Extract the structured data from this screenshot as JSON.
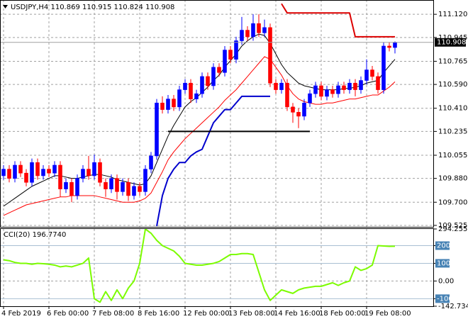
{
  "chart_data": [
    {
      "type": "candlestick",
      "title": "USDJPY,H4  110.869 110.915 110.824 110.908",
      "categories": [
        "4 Feb 2019",
        null,
        null,
        null,
        null,
        null,
        null,
        null,
        "6 Feb 00:00",
        null,
        null,
        null,
        null,
        null,
        null,
        null,
        "7 Feb 08:00",
        null,
        null,
        null,
        null,
        null,
        null,
        null,
        "8 Feb 16:00",
        null,
        null,
        null,
        null,
        null,
        null,
        null,
        "12 Feb 00:00",
        null,
        null,
        null,
        null,
        null,
        null,
        null,
        "13 Feb 08:00",
        null,
        null,
        null,
        null,
        null,
        null,
        null,
        "14 Feb 16:00",
        null,
        null,
        null,
        null,
        null,
        null,
        null,
        "18 Feb 00:00",
        null,
        null,
        null,
        null,
        null,
        null,
        null,
        "19 Feb 08:00",
        null,
        null,
        null,
        null,
        null
      ],
      "open": [
        109.9,
        109.95,
        109.88,
        109.98,
        109.92,
        109.85,
        110.0,
        109.9,
        109.95,
        109.92,
        109.98,
        109.8,
        109.85,
        109.75,
        109.88,
        109.95,
        109.9,
        110.0,
        109.85,
        109.8,
        109.88,
        109.78,
        109.85,
        109.75,
        109.82,
        109.78,
        109.95,
        110.05,
        110.45,
        110.4,
        110.48,
        110.42,
        110.55,
        110.6,
        110.48,
        110.52,
        110.65,
        110.58,
        110.72,
        110.68,
        110.85,
        110.78,
        110.92,
        111.0,
        110.95,
        111.05,
        110.98,
        111.02,
        110.6,
        110.55,
        110.6,
        110.42,
        110.38,
        110.35,
        110.45,
        110.52,
        110.58,
        110.5,
        110.55,
        110.52,
        110.58,
        110.55,
        110.6,
        110.55,
        110.62,
        110.7,
        110.65,
        110.55,
        110.88,
        110.869
      ],
      "high": [
        109.98,
        109.98,
        110.01,
        110.01,
        109.95,
        110.03,
        110.03,
        109.98,
        109.98,
        110.01,
        110.01,
        109.88,
        109.88,
        109.91,
        109.98,
        110.05,
        110.06,
        110.03,
        109.88,
        109.91,
        109.91,
        109.88,
        109.88,
        109.85,
        109.85,
        109.98,
        110.08,
        110.48,
        110.5,
        110.51,
        110.51,
        110.58,
        110.63,
        110.63,
        110.55,
        110.68,
        110.68,
        110.75,
        110.75,
        110.88,
        110.88,
        110.95,
        111.1,
        111.03,
        111.12,
        111.12,
        111.08,
        111.05,
        110.63,
        110.63,
        110.63,
        110.45,
        110.41,
        110.48,
        110.55,
        110.61,
        110.61,
        110.58,
        110.58,
        110.61,
        110.61,
        110.63,
        110.63,
        110.65,
        110.78,
        110.73,
        110.68,
        110.91,
        110.91,
        110.915
      ],
      "low": [
        109.87,
        109.85,
        109.85,
        109.89,
        109.82,
        109.82,
        109.87,
        109.87,
        109.89,
        109.89,
        109.74,
        109.77,
        109.7,
        109.72,
        109.85,
        109.87,
        109.87,
        109.82,
        109.74,
        109.77,
        109.72,
        109.75,
        109.71,
        109.72,
        109.75,
        109.75,
        109.92,
        110.02,
        110.37,
        110.37,
        110.39,
        110.39,
        110.52,
        110.45,
        110.45,
        110.49,
        110.55,
        110.55,
        110.65,
        110.65,
        110.75,
        110.75,
        110.89,
        110.92,
        110.92,
        110.95,
        110.95,
        110.57,
        110.52,
        110.52,
        110.39,
        110.3,
        110.26,
        110.32,
        110.42,
        110.49,
        110.47,
        110.47,
        110.49,
        110.49,
        110.52,
        110.52,
        110.5,
        110.52,
        110.59,
        110.62,
        110.52,
        110.52,
        110.84,
        110.824
      ],
      "close": [
        109.95,
        109.88,
        109.98,
        109.92,
        109.85,
        110.0,
        109.9,
        109.95,
        109.92,
        109.98,
        109.8,
        109.85,
        109.75,
        109.88,
        109.95,
        109.9,
        110.0,
        109.85,
        109.8,
        109.88,
        109.78,
        109.85,
        109.75,
        109.82,
        109.78,
        109.95,
        110.05,
        110.45,
        110.4,
        110.48,
        110.42,
        110.55,
        110.6,
        110.48,
        110.52,
        110.65,
        110.58,
        110.72,
        110.68,
        110.85,
        110.78,
        110.92,
        111.0,
        110.95,
        111.05,
        110.98,
        111.02,
        110.6,
        110.55,
        110.6,
        110.42,
        110.38,
        110.35,
        110.45,
        110.52,
        110.58,
        110.5,
        110.55,
        110.52,
        110.58,
        110.55,
        110.6,
        110.55,
        110.62,
        110.7,
        110.65,
        110.55,
        110.88,
        110.869,
        110.908
      ],
      "up_color": "#0000ff",
      "down_color": "#ff0000",
      "series": [
        {
          "color": "#000000",
          "values": [
            109.67,
            109.7,
            109.73,
            109.76,
            109.79,
            109.82,
            109.84,
            109.86,
            109.88,
            109.9,
            109.9,
            109.89,
            109.88,
            109.88,
            109.89,
            109.9,
            109.91,
            109.91,
            109.9,
            109.89,
            109.87,
            109.86,
            109.85,
            109.84,
            109.83,
            109.84,
            109.9,
            110.0,
            110.1,
            110.2,
            110.28,
            110.35,
            110.42,
            110.46,
            110.49,
            110.53,
            110.57,
            110.62,
            110.66,
            110.72,
            110.77,
            110.82,
            110.88,
            110.92,
            110.95,
            110.97,
            110.96,
            110.9,
            110.82,
            110.74,
            110.68,
            110.64,
            110.6,
            110.58,
            110.57,
            110.56,
            110.55,
            110.55,
            110.55,
            110.55,
            110.56,
            110.56,
            110.57,
            110.58,
            110.6,
            110.61,
            110.62,
            110.68,
            110.73,
            110.78
          ]
        },
        {
          "color": "#ff0000",
          "values": [
            109.6,
            109.62,
            109.64,
            109.66,
            109.68,
            109.69,
            109.7,
            109.71,
            109.72,
            109.73,
            109.74,
            109.74,
            109.75,
            109.75,
            109.75,
            109.75,
            109.75,
            109.74,
            109.73,
            109.72,
            109.71,
            109.7,
            109.7,
            109.7,
            109.71,
            109.73,
            109.77,
            109.85,
            109.93,
            110.02,
            110.08,
            110.13,
            110.18,
            110.22,
            110.26,
            110.3,
            110.34,
            110.38,
            110.42,
            110.47,
            110.51,
            110.55,
            110.6,
            110.65,
            110.7,
            110.75,
            110.8,
            110.78,
            110.72,
            110.66,
            110.58,
            110.52,
            110.48,
            110.46,
            110.45,
            110.44,
            110.44,
            110.45,
            110.45,
            110.46,
            110.47,
            110.48,
            110.48,
            110.49,
            110.5,
            110.51,
            110.51,
            110.54,
            110.57,
            110.61
          ]
        },
        {
          "color": "#0000cd",
          "values": [
            null,
            null,
            null,
            null,
            null,
            null,
            null,
            null,
            null,
            null,
            null,
            null,
            null,
            null,
            null,
            null,
            null,
            null,
            null,
            null,
            null,
            null,
            null,
            null,
            null,
            null,
            null,
            109.52,
            109.75,
            109.88,
            109.95,
            110.0,
            110.0,
            110.05,
            110.08,
            110.1,
            110.2,
            110.3,
            110.35,
            110.4,
            110.4,
            110.45,
            110.5,
            110.5,
            110.5,
            110.5,
            110.5,
            110.5,
            null,
            null,
            null,
            null,
            null,
            null,
            null,
            null,
            null,
            null,
            null,
            null,
            null,
            null,
            null,
            null,
            null,
            null,
            null,
            null,
            null,
            null
          ]
        },
        {
          "color": "#dd0000",
          "values": [
            null,
            null,
            null,
            null,
            null,
            null,
            null,
            null,
            null,
            null,
            null,
            null,
            null,
            null,
            null,
            null,
            null,
            null,
            null,
            null,
            null,
            null,
            null,
            null,
            null,
            null,
            null,
            null,
            null,
            null,
            null,
            null,
            null,
            null,
            null,
            null,
            null,
            null,
            null,
            null,
            null,
            null,
            null,
            null,
            null,
            null,
            null,
            null,
            null,
            111.2,
            111.13,
            111.13,
            111.13,
            111.13,
            111.13,
            111.13,
            111.13,
            111.13,
            111.13,
            111.13,
            111.13,
            111.13,
            110.95,
            110.95,
            110.95,
            110.95,
            110.95,
            110.95,
            110.95,
            110.95
          ]
        },
        {
          "color": "#000000",
          "values": [
            null,
            null,
            null,
            null,
            null,
            null,
            null,
            null,
            null,
            null,
            null,
            null,
            null,
            null,
            null,
            null,
            null,
            null,
            null,
            null,
            null,
            null,
            null,
            null,
            null,
            null,
            null,
            null,
            null,
            110.235,
            110.235,
            110.235,
            110.235,
            110.235,
            110.235,
            110.235,
            110.235,
            110.235,
            110.235,
            110.235,
            110.235,
            110.235,
            110.235,
            110.235,
            110.235,
            110.235,
            110.235,
            110.235,
            110.235,
            110.235,
            110.235,
            110.235,
            110.235,
            110.235,
            110.235,
            null,
            null,
            null,
            null,
            null,
            null,
            null,
            null,
            null,
            null,
            null,
            null,
            null,
            null,
            null
          ]
        }
      ],
      "ylim": [
        109.514,
        111.228
      ],
      "yticks": [
        {
          "value": 111.12,
          "label": "111.120"
        },
        {
          "value": 110.945,
          "label": "110.945"
        },
        {
          "value": 110.765,
          "label": "110.765"
        },
        {
          "value": 110.59,
          "label": "110.590"
        },
        {
          "value": 110.41,
          "label": "110.410"
        },
        {
          "value": 110.235,
          "label": "110.235"
        },
        {
          "value": 110.055,
          "label": "110.055"
        },
        {
          "value": 109.88,
          "label": "109.880"
        },
        {
          "value": 109.7,
          "label": "109.700"
        },
        {
          "value": 109.525,
          "label": "109.525"
        }
      ],
      "grid": true
    },
    {
      "type": "line",
      "title": "CCI(20) 196.7740",
      "series": [
        {
          "color": "#7cfc00",
          "values": [
            120,
            115,
            105,
            100,
            100,
            95,
            100,
            98,
            95,
            90,
            80,
            85,
            80,
            90,
            100,
            130,
            -100,
            -120,
            -60,
            -110,
            -50,
            -100,
            -40,
            0,
            100,
            294,
            270,
            230,
            200,
            185,
            170,
            140,
            100,
            95,
            90,
            90,
            95,
            100,
            110,
            130,
            150,
            150,
            155,
            155,
            150,
            50,
            -50,
            -110,
            -80,
            -50,
            -60,
            -70,
            -50,
            -40,
            -35,
            -30,
            -30,
            -20,
            -10,
            -25,
            -10,
            0,
            80,
            60,
            70,
            90,
            200,
            198,
            196,
            196.774
          ]
        }
      ],
      "ylim": [
        -142.7343,
        294.2557
      ],
      "yticks": [
        294.2557,
        200,
        100,
        {
          "value": 0,
          "label": "0.00"
        },
        -100,
        -142.7343
      ],
      "levels": [
        200,
        100,
        -100
      ],
      "grid": true
    }
  ]
}
